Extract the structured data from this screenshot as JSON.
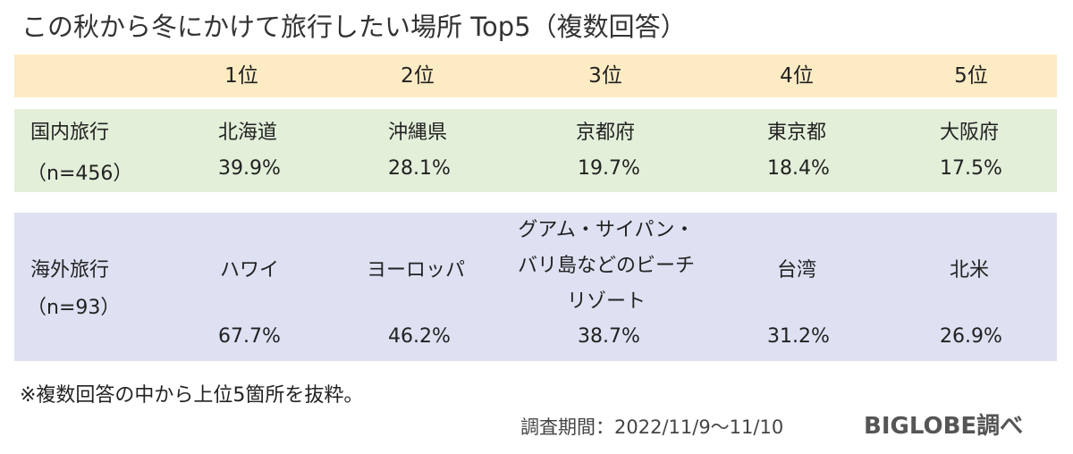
{
  "title": "この秋から冬にかけて旅行したい場所 Top5（複数回答）",
  "colors": {
    "header_band": "#FDEBC4",
    "domestic_band": "#E3EFD9",
    "overseas_band": "#DDE1F2",
    "text": "#222222"
  },
  "chart_data": {
    "type": "table",
    "title": "この秋から冬にかけて旅行したい場所 Top5（複数回答）",
    "columns": [
      "1位",
      "2位",
      "3位",
      "4位",
      "5位"
    ],
    "rows": [
      {
        "label": "国内旅行",
        "sample": "（n=456）",
        "places": [
          "北海道",
          "沖縄県",
          "京都府",
          "東京都",
          "大阪府"
        ],
        "values": [
          "39.9%",
          "28.1%",
          "19.7%",
          "18.4%",
          "17.5%"
        ]
      },
      {
        "label": "海外旅行",
        "sample": "（n=93）",
        "places": [
          "ハワイ",
          "ヨーロッパ",
          "グアム・サイパン・バリ島などのビーチリゾート",
          "台湾",
          "北米"
        ],
        "places_lines": [
          [
            "ハワイ"
          ],
          [
            "ヨーロッパ"
          ],
          [
            "グアム・サイパン・",
            "バリ島などのビーチ",
            "リゾート"
          ],
          [
            "台湾"
          ],
          [
            "北米"
          ]
        ],
        "values": [
          "67.7%",
          "46.2%",
          "38.7%",
          "31.2%",
          "26.9%"
        ]
      }
    ]
  },
  "footnote": "※複数回答の中から上位5箇所を抜粋。",
  "survey_period": "調査期間：2022/11/9～11/10",
  "source": "BIGLOBE調べ"
}
